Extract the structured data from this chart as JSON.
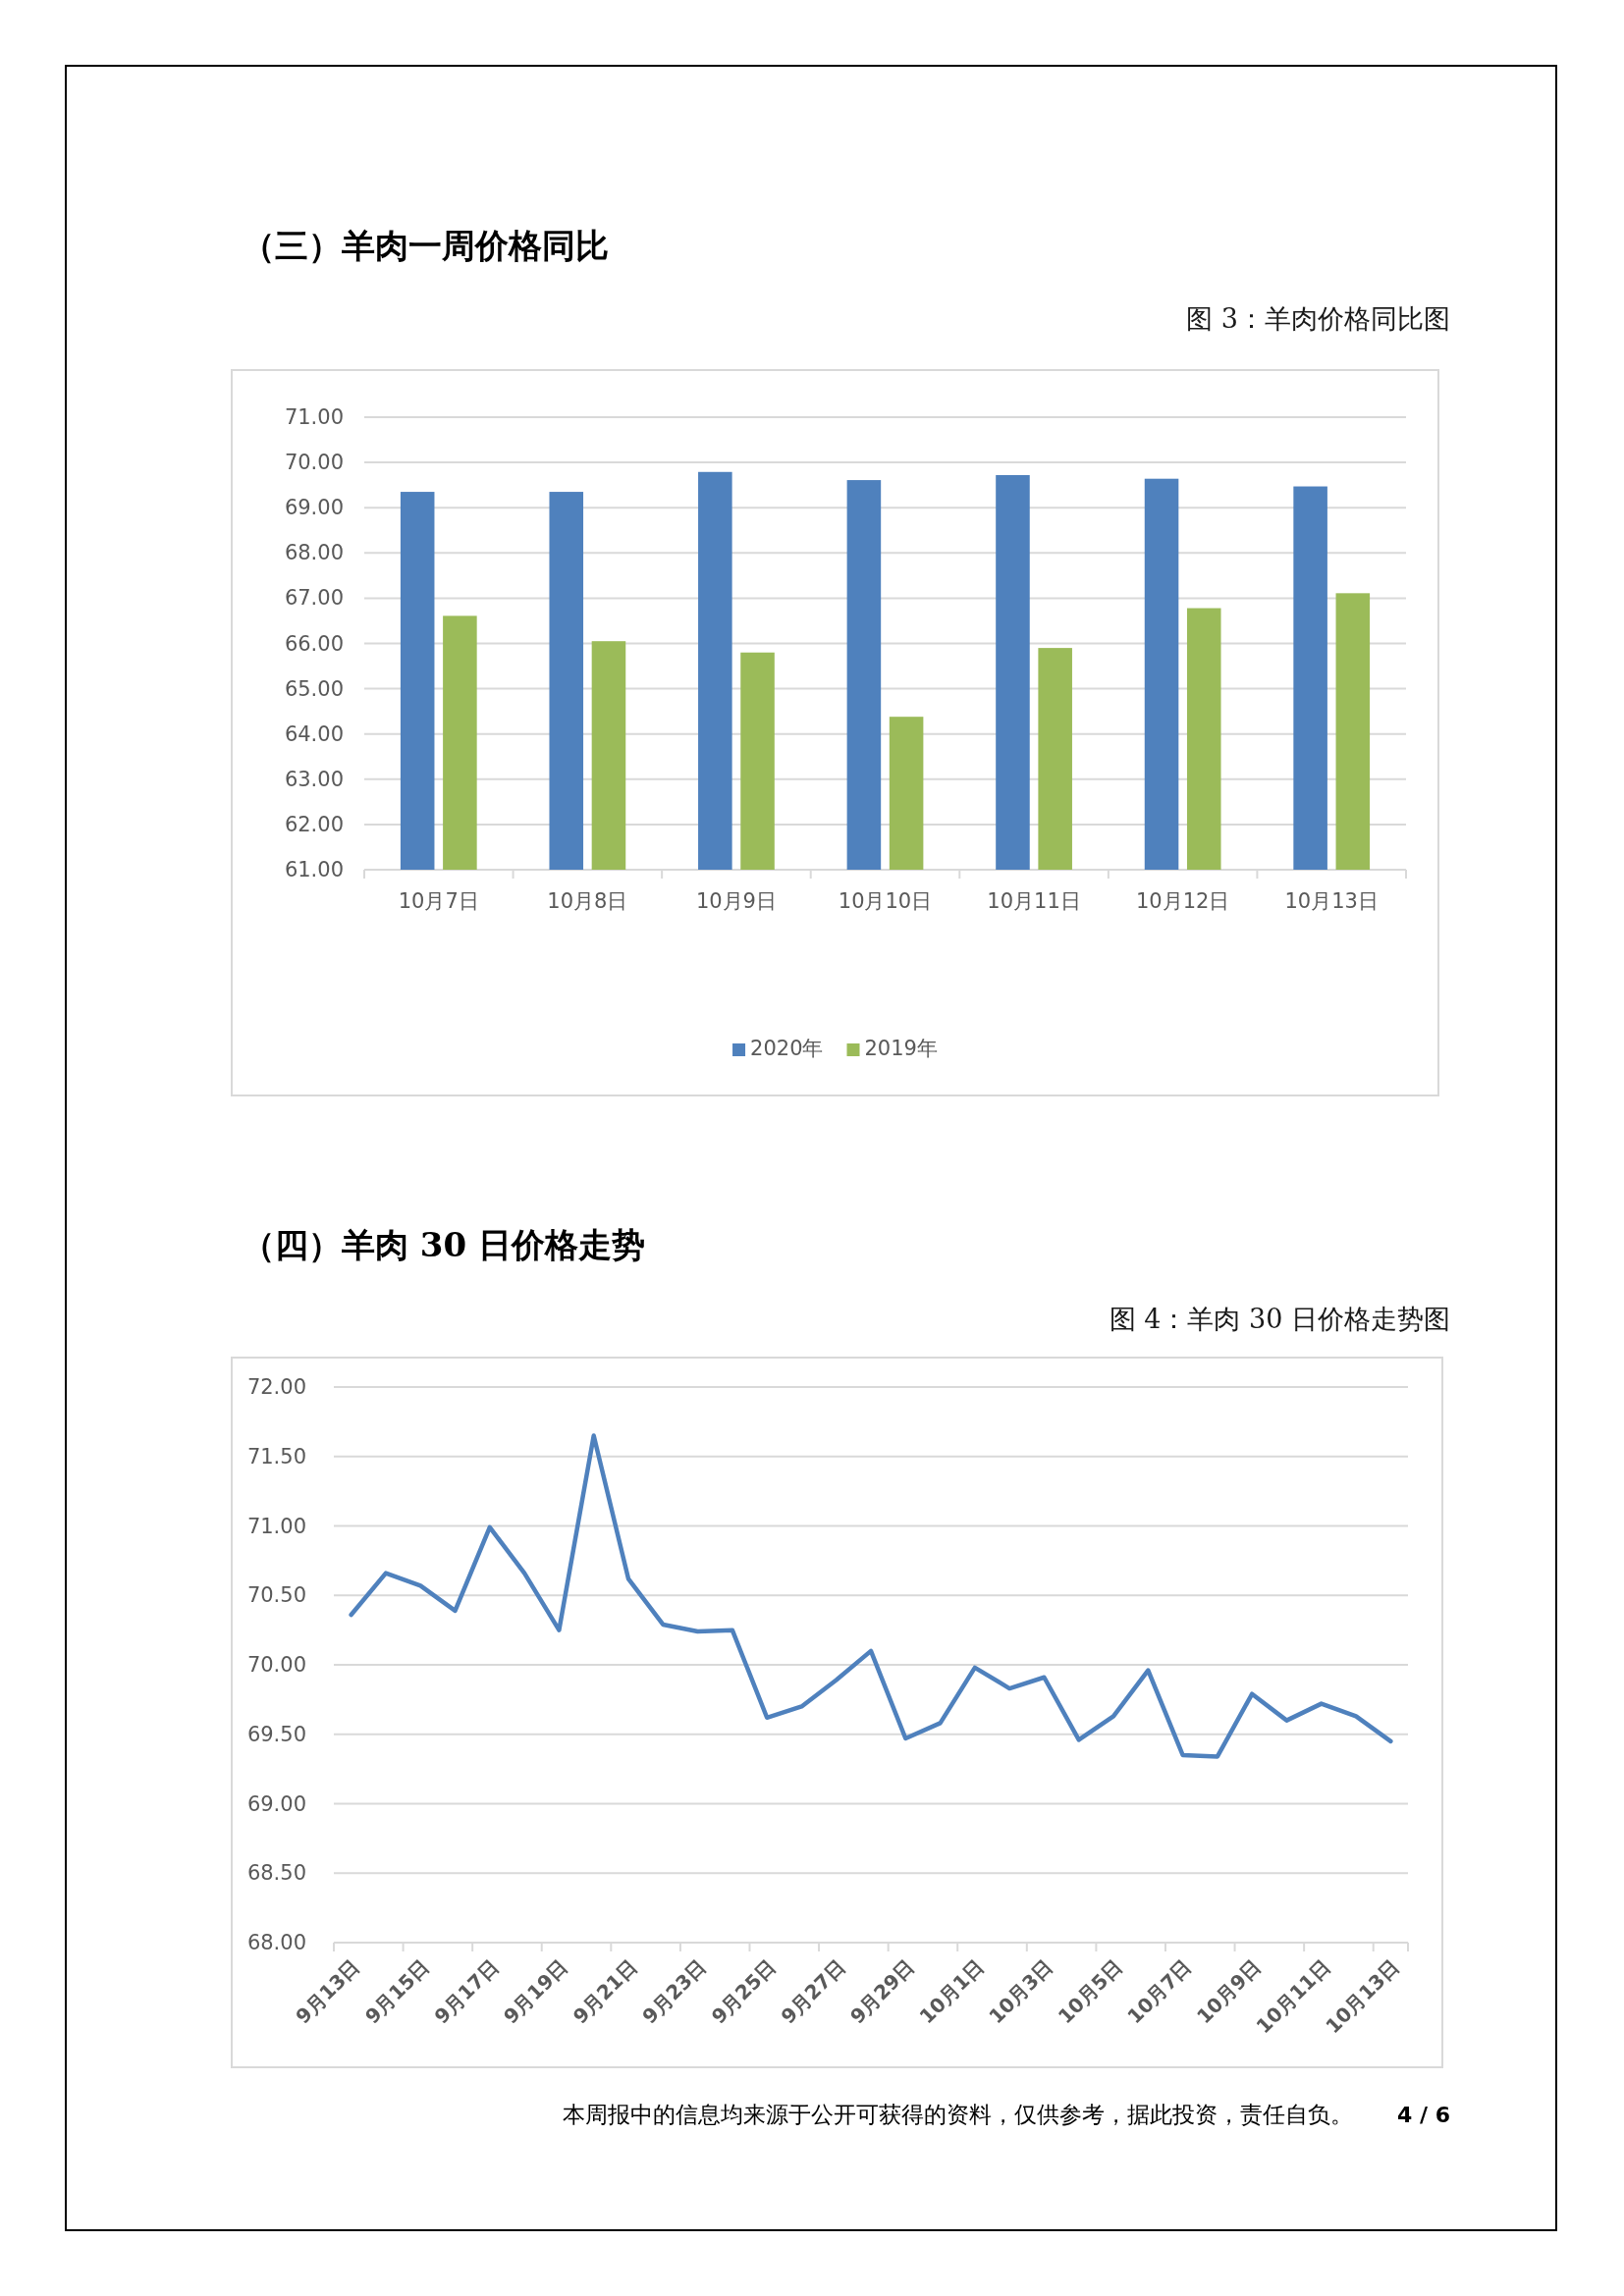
{
  "chart_data": [
    {
      "type": "bar",
      "title": "（三）羊肉一周价格同比",
      "subtitle": "图 3：羊肉价格同比图",
      "categories": [
        "10月7日",
        "10月8日",
        "10月9日",
        "10月10日",
        "10月11日",
        "10月12日",
        "10月13日"
      ],
      "series": [
        {
          "name": "2020年",
          "color": "#4f81bd",
          "values": [
            69.35,
            69.35,
            69.79,
            69.61,
            69.72,
            69.64,
            69.47
          ]
        },
        {
          "name": "2019年",
          "color": "#9bbb59",
          "values": [
            66.61,
            66.05,
            65.8,
            64.38,
            65.9,
            66.78,
            67.11
          ]
        }
      ],
      "ylim": [
        61,
        71
      ],
      "yticks": [
        {
          "value": 61,
          "label": "61.00"
        },
        {
          "value": 62,
          "label": "62.00"
        },
        {
          "value": 63,
          "label": "63.00"
        },
        {
          "value": 64,
          "label": "64.00"
        },
        {
          "value": 65,
          "label": "65.00"
        },
        {
          "value": 66,
          "label": "66.00"
        },
        {
          "value": 67,
          "label": "67.00"
        },
        {
          "value": 68,
          "label": "68.00"
        },
        {
          "value": 69,
          "label": "69.00"
        },
        {
          "value": 70,
          "label": "70.00"
        },
        {
          "value": 71,
          "label": "71.00"
        }
      ],
      "grid": "y",
      "legend": "bottom"
    },
    {
      "type": "line",
      "title": "（四）羊肉 30 日价格走势",
      "subtitle": "图 4：羊肉 30 日价格走势图",
      "categories": [
        "9月13日",
        null,
        "9月15日",
        null,
        "9月17日",
        null,
        "9月19日",
        null,
        "9月21日",
        null,
        "9月23日",
        null,
        "9月25日",
        null,
        "9月27日",
        null,
        "9月29日",
        null,
        "10月1日",
        null,
        "10月3日",
        null,
        "10月5日",
        null,
        "10月7日",
        null,
        "10月9日",
        null,
        "10月11日",
        null,
        "10月13日"
      ],
      "series": [
        {
          "color": "#4f81bd",
          "values": [
            70.36,
            70.66,
            70.57,
            70.39,
            70.99,
            70.66,
            70.25,
            71.65,
            70.62,
            70.29,
            70.24,
            70.25,
            69.62,
            69.7,
            69.89,
            70.1,
            69.47,
            69.58,
            69.98,
            69.83,
            69.91,
            69.46,
            69.63,
            69.96,
            69.35,
            69.34,
            69.79,
            69.6,
            69.72,
            69.63,
            69.45
          ]
        }
      ],
      "ylim": [
        68,
        72
      ],
      "yticks": [
        {
          "value": 68,
          "label": "68.00"
        },
        {
          "value": 68.5,
          "label": "68.50"
        },
        {
          "value": 69,
          "label": "69.00"
        },
        {
          "value": 69.5,
          "label": "69.50"
        },
        {
          "value": 70,
          "label": "70.00"
        },
        {
          "value": 70.5,
          "label": "70.50"
        },
        {
          "value": 71,
          "label": "71.00"
        },
        {
          "value": 71.5,
          "label": "71.50"
        },
        {
          "value": 72,
          "label": "72.00"
        }
      ],
      "grid": "y",
      "line_style": "solid",
      "annotations": [
        "本周报中的信息均来源于公开可获得的资料，仅供参考，据此投资，责任自负。",
        "4 / 6"
      ]
    }
  ]
}
